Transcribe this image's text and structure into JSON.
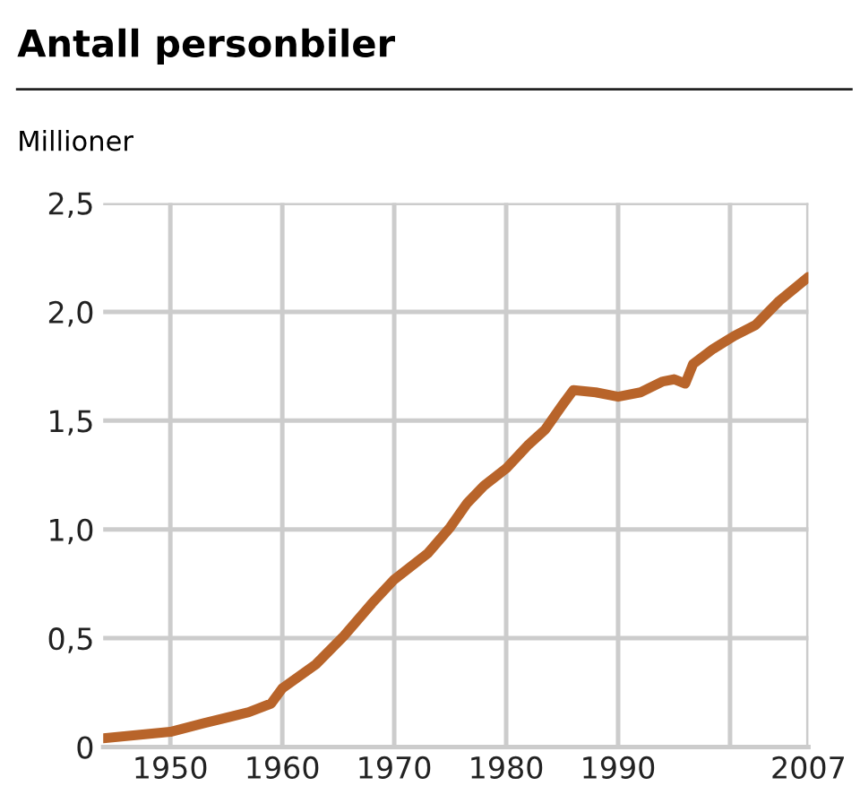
{
  "chart_data": {
    "type": "line",
    "title": "Antall personbiler",
    "ylabel": "Millioner",
    "x": [
      1944,
      1950,
      1953,
      1957,
      1959,
      1960,
      1963,
      1965.5,
      1968,
      1970,
      1973,
      1975,
      1976.5,
      1978,
      1980,
      1982,
      1983.5,
      1985,
      1986,
      1988,
      1990,
      1992,
      1994,
      1995,
      1996,
      1996.7,
      1998.5,
      2000.4,
      2002.3,
      2004.4,
      2007
    ],
    "series": [
      {
        "color": "#b8642a",
        "values": [
          0.04,
          0.07,
          0.11,
          0.16,
          0.2,
          0.27,
          0.38,
          0.51,
          0.66,
          0.77,
          0.89,
          1.01,
          1.12,
          1.2,
          1.28,
          1.39,
          1.46,
          1.57,
          1.64,
          1.63,
          1.61,
          1.63,
          1.68,
          1.69,
          1.67,
          1.76,
          1.83,
          1.89,
          1.94,
          2.05,
          2.16
        ]
      }
    ],
    "xlim": [
      1944,
      2007
    ],
    "ylim": [
      0,
      2.5
    ],
    "xticks": [
      1950,
      1960,
      1970,
      1980,
      1990,
      {
        "value": 2000,
        "label": null
      },
      2007
    ],
    "yticks": [
      0,
      {
        "value": 0.5,
        "label": "0,5"
      },
      {
        "value": 1.0,
        "label": "1,0"
      },
      {
        "value": 1.5,
        "label": "1,5"
      },
      {
        "value": 2.0,
        "label": "2,0"
      },
      {
        "value": 2.5,
        "label": "2,5"
      }
    ],
    "grid": true,
    "legend": false,
    "marker": "none",
    "line_style": "solid"
  }
}
